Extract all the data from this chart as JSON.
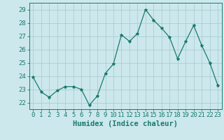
{
  "x": [
    0,
    1,
    2,
    3,
    4,
    5,
    6,
    7,
    8,
    9,
    10,
    11,
    12,
    13,
    14,
    15,
    16,
    17,
    18,
    19,
    20,
    21,
    22,
    23
  ],
  "y": [
    23.9,
    22.8,
    22.4,
    22.9,
    23.2,
    23.2,
    23.0,
    21.8,
    22.5,
    24.2,
    24.9,
    27.1,
    26.6,
    27.2,
    29.0,
    28.2,
    27.6,
    26.9,
    25.3,
    26.6,
    27.8,
    26.3,
    25.0,
    23.3
  ],
  "line_color": "#1a7a6e",
  "marker": "*",
  "marker_size": 3,
  "bg_color": "#cce8ec",
  "grid_color": "#aacdd2",
  "xlabel": "Humidex (Indice chaleur)",
  "ylim": [
    21.5,
    29.5
  ],
  "xlim": [
    -0.5,
    23.5
  ],
  "yticks": [
    22,
    23,
    24,
    25,
    26,
    27,
    28,
    29
  ],
  "xticks": [
    0,
    1,
    2,
    3,
    4,
    5,
    6,
    7,
    8,
    9,
    10,
    11,
    12,
    13,
    14,
    15,
    16,
    17,
    18,
    19,
    20,
    21,
    22,
    23
  ],
  "font_color": "#1a7a6e",
  "tick_fontsize": 6.5,
  "xlabel_fontsize": 7.5
}
